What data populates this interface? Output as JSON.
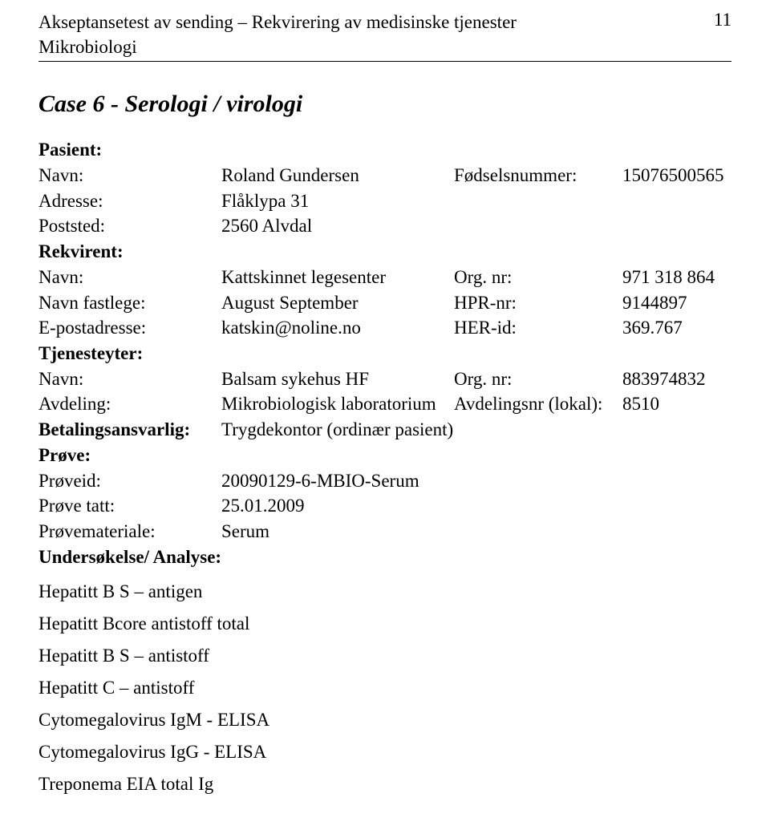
{
  "header": {
    "title_line1": "Akseptansetest av sending – Rekvirering av medisinske tjenester",
    "title_line2": "Mikrobiologi",
    "page_number": "11"
  },
  "case_heading": "Case 6 - Serologi / virologi",
  "pasient": {
    "section": "Pasient:",
    "navn_label": "Navn:",
    "navn": "Roland Gundersen",
    "fodsel_label": "Fødselsnummer:",
    "fodsel": "15076500565",
    "adresse_label": "Adresse:",
    "adresse": "Flåklypa 31",
    "poststed_label": "Poststed:",
    "poststed": "2560 Alvdal"
  },
  "rekvirent": {
    "section": "Rekvirent:",
    "navn_label": "Navn:",
    "navn": "Kattskinnet legesenter",
    "orgnr_label": "Org. nr:",
    "orgnr": "971 318 864",
    "fastlege_label": "Navn fastlege:",
    "fastlege": "August September",
    "hpr_label": "HPR-nr:",
    "hpr": "9144897",
    "epost_label": "E-postadresse:",
    "epost": "katskin@noline.no",
    "herid_label": "HER-id:",
    "herid": "369.767"
  },
  "tjenesteyter": {
    "section": "Tjenesteyter:",
    "navn_label": "Navn:",
    "navn": "Balsam sykehus HF",
    "orgnr_label": "Org. nr:",
    "orgnr": "883974832",
    "avdeling_label": "Avdeling:",
    "avdeling": "Mikrobiologisk laboratorium",
    "avdnr_label": "Avdelingsnr (lokal):",
    "avdnr": "8510"
  },
  "betaling": {
    "label": "Betalingsansvarlig:",
    "value": "Trygdekontor (ordinær pasient)"
  },
  "prove": {
    "section": "Prøve:",
    "proveid_label": "Prøveid:",
    "proveid": "20090129-6-MBIO-Serum",
    "tatt_label": "Prøve tatt:",
    "tatt": "25.01.2009",
    "materiale_label": "Prøvemateriale:",
    "materiale": "Serum"
  },
  "analyse": {
    "section": "Undersøkelse/ Analyse:",
    "items": [
      "Hepatitt B S – antigen",
      "Hepatitt Bcore antistoff total",
      "Hepatitt B S – antistoff",
      "Hepatitt C – antistoff",
      "Cytomegalovirus IgM - ELISA",
      "Cytomegalovirus IgG - ELISA",
      "Treponema EIA total Ig"
    ]
  }
}
